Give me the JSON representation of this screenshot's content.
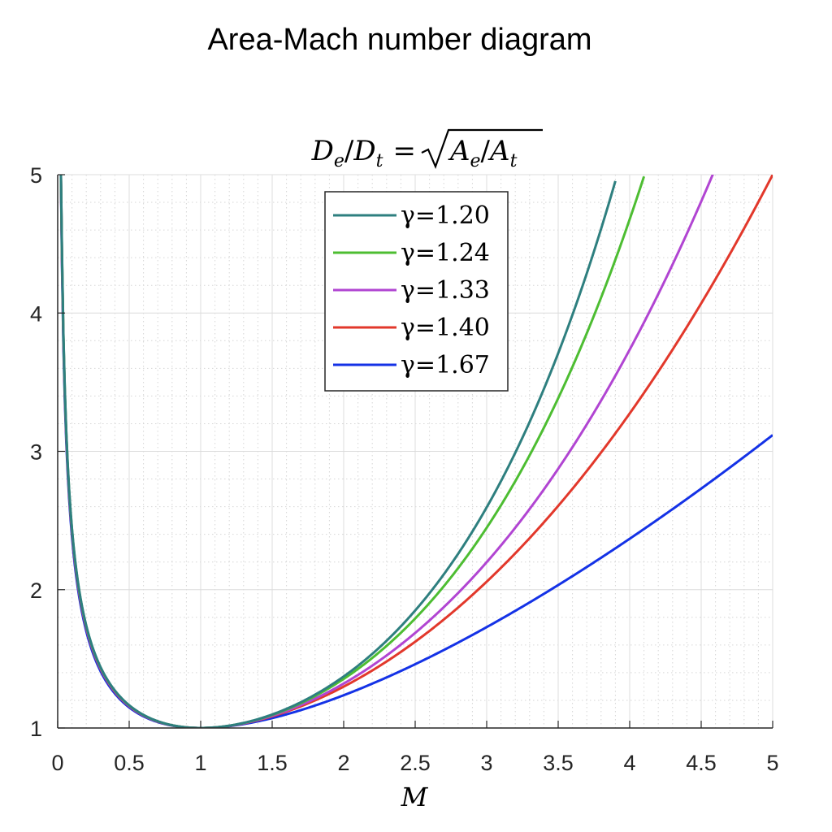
{
  "figure": {
    "title": "Area-Mach number diagram"
  },
  "chart_data": {
    "type": "line",
    "title": "D_e/D_t = √(A_e/A_t)",
    "title_parts": {
      "lhs_main_1": "D",
      "lhs_sub_1": "e",
      "slash": "/",
      "lhs_main_2": "D",
      "lhs_sub_2": "t",
      "equals": "=",
      "rhs_main_1": "A",
      "rhs_sub_1": "e",
      "rhs_main_2": "A",
      "rhs_sub_2": "t"
    },
    "xlabel": "M",
    "ylabel": "",
    "xlim": [
      0,
      5
    ],
    "ylim": [
      1,
      5
    ],
    "xticks": [
      "0",
      "0.5",
      "1",
      "1.5",
      "2",
      "2.5",
      "3",
      "3.5",
      "4",
      "4.5",
      "5"
    ],
    "yticks": [
      "1",
      "2",
      "3",
      "4",
      "5"
    ],
    "grid": true,
    "minor_grid": true,
    "legend_position": "top-center",
    "series": [
      {
        "name": "γ=1.20",
        "color": "#2e7f7f",
        "gamma": 1.2,
        "x": [
          0.02,
          0.05,
          0.1,
          0.2,
          0.3,
          0.5,
          0.75,
          1.0,
          1.5,
          2.0,
          2.5,
          3.0,
          3.5,
          3.9
        ],
        "y": [
          5.0,
          5.0,
          3.1,
          2.16,
          1.74,
          1.31,
          1.06,
          1.0,
          1.1,
          1.37,
          1.82,
          2.55,
          3.65,
          5.0
        ]
      },
      {
        "name": "γ=1.24",
        "color": "#4dbd32",
        "gamma": 1.24,
        "x": [
          0.02,
          0.05,
          0.1,
          0.2,
          0.3,
          0.5,
          0.75,
          1.0,
          1.5,
          2.0,
          2.5,
          3.0,
          3.5,
          4.1
        ],
        "y": [
          5.0,
          5.0,
          3.1,
          2.16,
          1.74,
          1.31,
          1.06,
          1.0,
          1.09,
          1.36,
          1.77,
          2.43,
          3.38,
          5.0
        ]
      },
      {
        "name": "γ=1.33",
        "color": "#b145d2",
        "gamma": 1.33,
        "x": [
          0.02,
          0.05,
          0.1,
          0.2,
          0.3,
          0.5,
          0.75,
          1.0,
          1.5,
          2.0,
          2.5,
          3.0,
          3.5,
          4.0,
          4.6
        ],
        "y": [
          5.0,
          5.0,
          3.1,
          2.16,
          1.74,
          1.31,
          1.06,
          1.0,
          1.08,
          1.33,
          1.7,
          2.2,
          2.85,
          3.65,
          5.0
        ]
      },
      {
        "name": "γ=1.40",
        "color": "#e2382b",
        "gamma": 1.4,
        "x": [
          0.02,
          0.05,
          0.1,
          0.2,
          0.3,
          0.5,
          0.75,
          1.0,
          1.5,
          2.0,
          2.5,
          3.0,
          3.5,
          4.0,
          4.5,
          5.0
        ],
        "y": [
          5.0,
          5.0,
          3.1,
          2.16,
          1.74,
          1.31,
          1.06,
          1.0,
          1.08,
          1.31,
          1.63,
          2.06,
          2.62,
          3.27,
          4.07,
          5.0
        ]
      },
      {
        "name": "γ=1.67",
        "color": "#1432e6",
        "gamma": 1.67,
        "x": [
          0.02,
          0.05,
          0.1,
          0.2,
          0.3,
          0.5,
          0.75,
          1.0,
          1.5,
          2.0,
          2.5,
          3.0,
          3.5,
          4.0,
          4.5,
          5.0
        ],
        "y": [
          5.0,
          5.0,
          3.1,
          2.16,
          1.74,
          1.31,
          1.06,
          1.0,
          1.06,
          1.24,
          1.46,
          1.74,
          2.03,
          2.36,
          2.73,
          3.13
        ]
      }
    ]
  }
}
